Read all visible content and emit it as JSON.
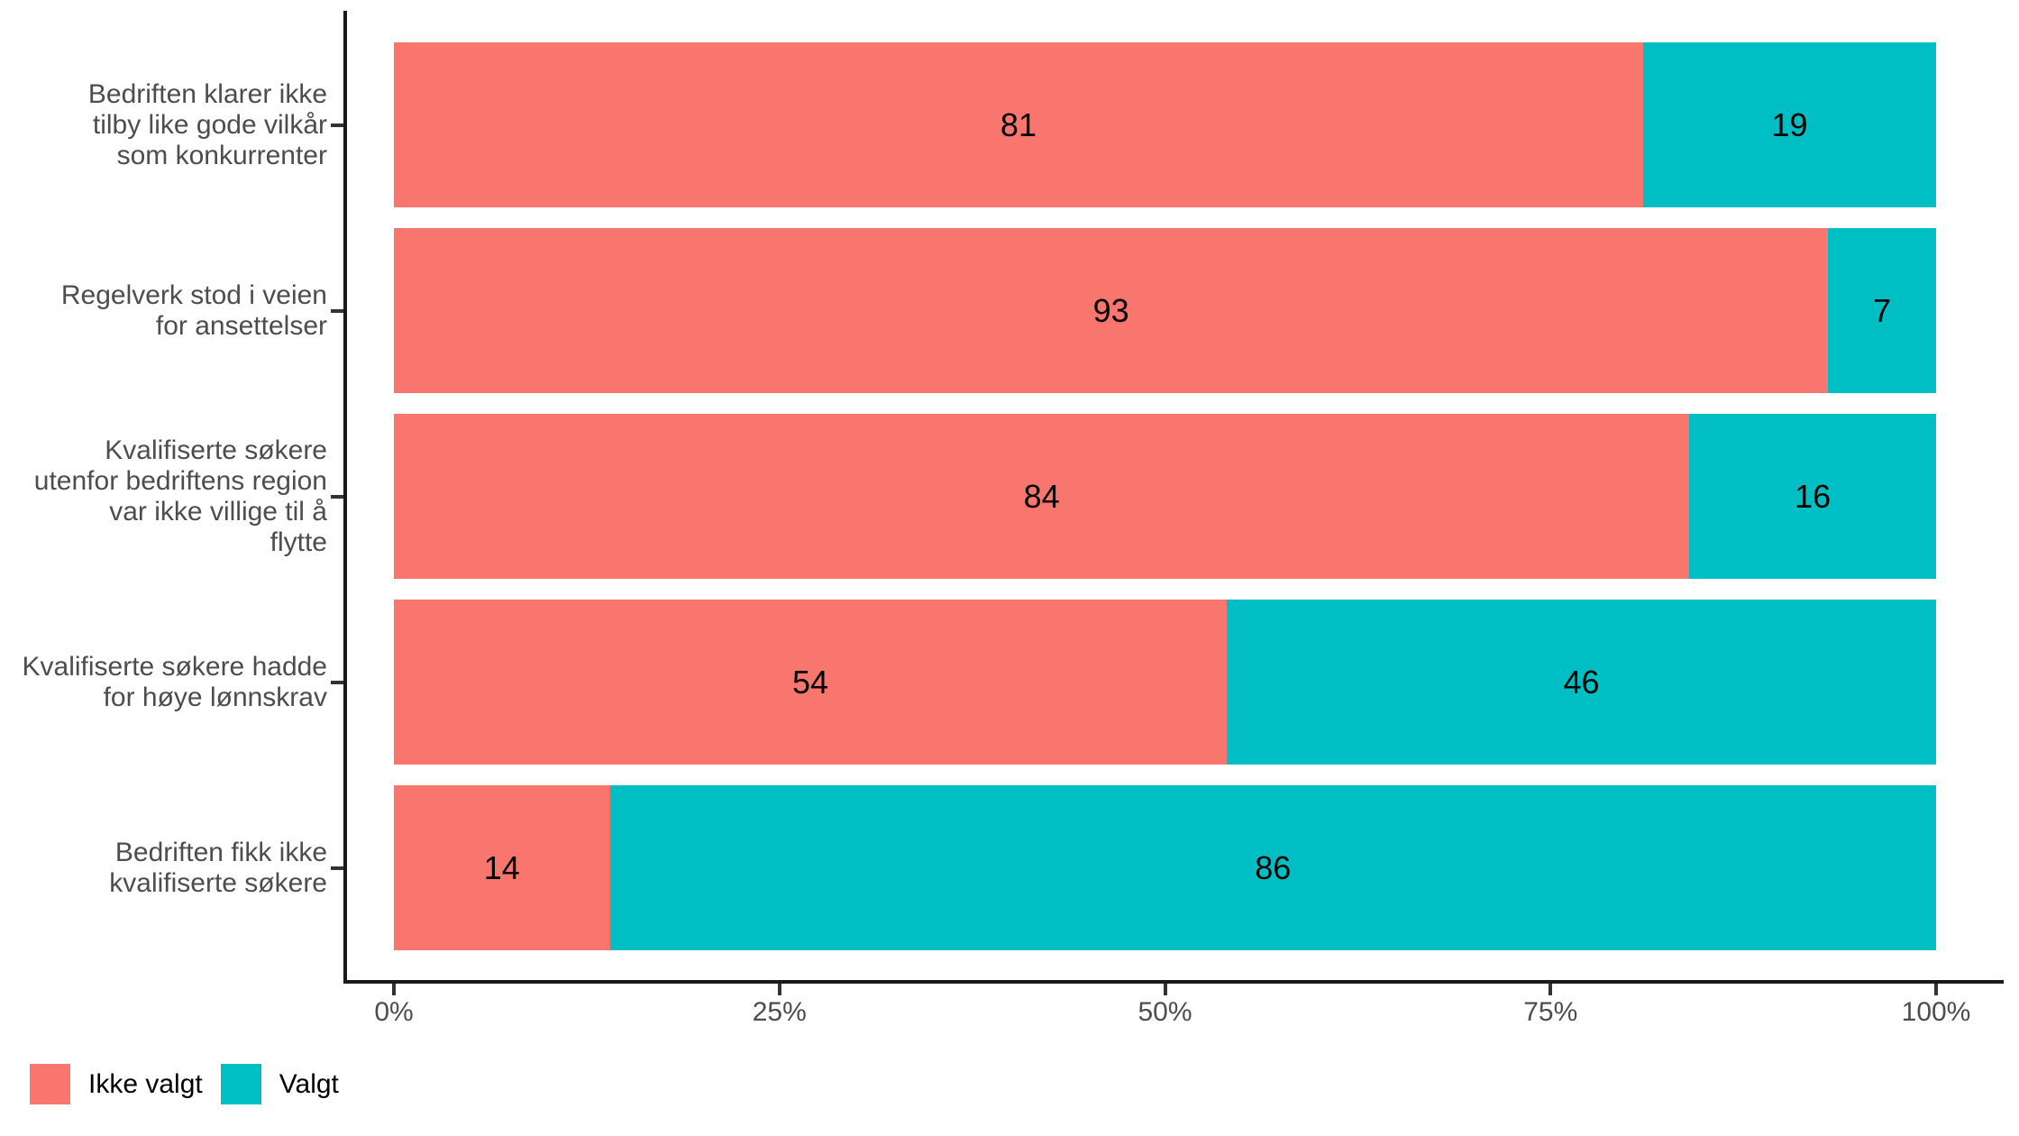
{
  "chart_data": {
    "type": "bar",
    "orientation": "horizontal",
    "stacked": true,
    "title": "",
    "xlabel": "",
    "ylabel": "",
    "grid": false,
    "categories": [
      "Bedriften klarer ikke tilby like gode vilkår som konkurrenter",
      "Regelverk stod i veien for ansettelser",
      "Kvalifiserte søkere utenfor bedriftens region var ikke villige til å flytte",
      "Kvalifiserte søkere hadde for høye lønnskrav",
      "Bedriften fikk ikke kvalifiserte søkere"
    ],
    "category_label_lines": [
      [
        "Bedriften klarer ikke",
        "tilby like gode vilkår",
        "som konkurrenter"
      ],
      [
        "Regelverk stod i veien",
        "for ansettelser"
      ],
      [
        "Kvalifiserte søkere",
        "utenfor bedriftens region",
        "var ikke villige til å",
        "flytte"
      ],
      [
        "Kvalifiserte søkere hadde",
        "for høye lønnskrav"
      ],
      [
        "Bedriften fikk ikke",
        "kvalifiserte søkere"
      ]
    ],
    "series": [
      {
        "name": "Ikke valgt",
        "color": "#F8766D",
        "values": [
          81,
          93,
          84,
          54,
          14
        ]
      },
      {
        "name": "Valgt",
        "color": "#00BFC4",
        "values": [
          19,
          7,
          16,
          46,
          86
        ]
      }
    ],
    "value_labels": true,
    "x_axis": {
      "range": [
        0,
        100
      ],
      "tick_values": [
        0,
        25,
        50,
        75,
        100
      ],
      "ticks": [
        "0%",
        "25%",
        "50%",
        "75%",
        "100%"
      ]
    },
    "legend": {
      "position": "bottom-left",
      "entries": [
        "Ikke valgt",
        "Valgt"
      ]
    },
    "colors": {
      "ikke_valgt": "#F8766D",
      "valgt": "#00BFC4",
      "axis_text": "#4D4D4D",
      "axis_line": "#1A1A1A",
      "value_text": "#000000"
    }
  }
}
